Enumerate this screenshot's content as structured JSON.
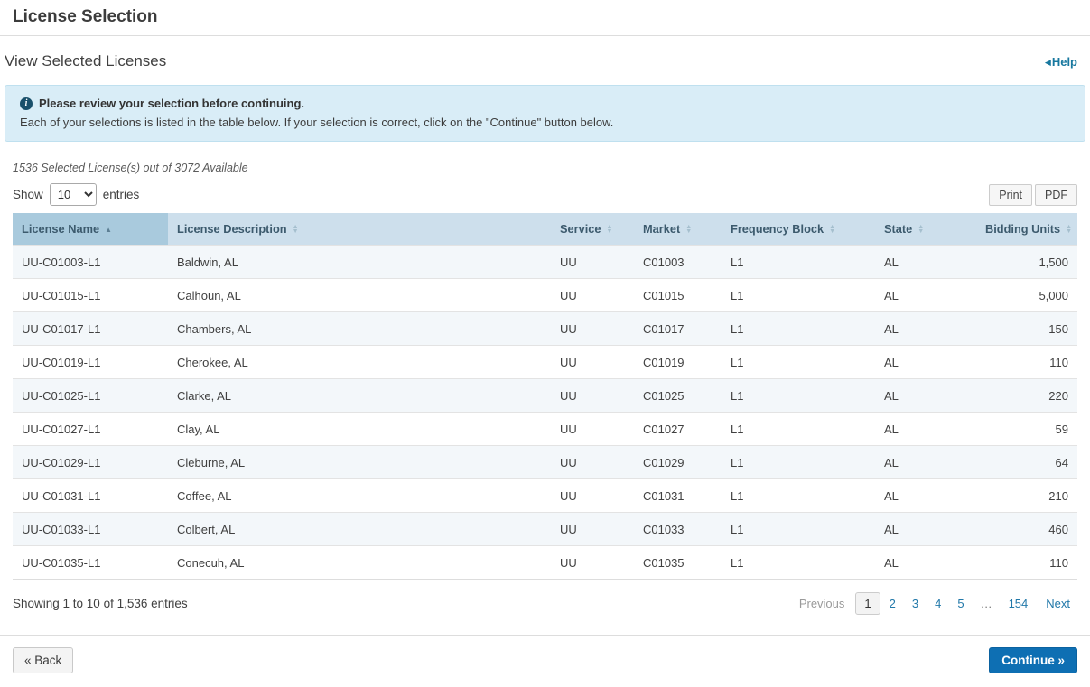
{
  "page": {
    "title": "License Selection",
    "section_title": "View Selected Licenses",
    "help_label": "Help"
  },
  "alert": {
    "title": "Please review your selection before continuing.",
    "body": "Each of your selections is listed in the table below. If your selection is correct, click on the \"Continue\" button below."
  },
  "summary": "1536 Selected License(s) out of 3072 Available",
  "table_controls": {
    "show_label": "Show",
    "page_size": "10",
    "entries_label": "entries",
    "print_label": "Print",
    "pdf_label": "PDF"
  },
  "table": {
    "columns": [
      {
        "key": "license-name",
        "label": "License Name",
        "sort": "asc",
        "align": "left"
      },
      {
        "key": "license-description",
        "label": "License Description",
        "sort": "none",
        "align": "left"
      },
      {
        "key": "service",
        "label": "Service",
        "sort": "none",
        "align": "left"
      },
      {
        "key": "market",
        "label": "Market",
        "sort": "none",
        "align": "left"
      },
      {
        "key": "frequency-block",
        "label": "Frequency Block",
        "sort": "none",
        "align": "left"
      },
      {
        "key": "state",
        "label": "State",
        "sort": "none",
        "align": "left"
      },
      {
        "key": "bidding-units",
        "label": "Bidding Units",
        "sort": "none",
        "align": "right"
      }
    ],
    "rows": [
      [
        "UU-C01003-L1",
        "Baldwin, AL",
        "UU",
        "C01003",
        "L1",
        "AL",
        "1,500"
      ],
      [
        "UU-C01015-L1",
        "Calhoun, AL",
        "UU",
        "C01015",
        "L1",
        "AL",
        "5,000"
      ],
      [
        "UU-C01017-L1",
        "Chambers, AL",
        "UU",
        "C01017",
        "L1",
        "AL",
        "150"
      ],
      [
        "UU-C01019-L1",
        "Cherokee, AL",
        "UU",
        "C01019",
        "L1",
        "AL",
        "110"
      ],
      [
        "UU-C01025-L1",
        "Clarke, AL",
        "UU",
        "C01025",
        "L1",
        "AL",
        "220"
      ],
      [
        "UU-C01027-L1",
        "Clay, AL",
        "UU",
        "C01027",
        "L1",
        "AL",
        "59"
      ],
      [
        "UU-C01029-L1",
        "Cleburne, AL",
        "UU",
        "C01029",
        "L1",
        "AL",
        "64"
      ],
      [
        "UU-C01031-L1",
        "Coffee, AL",
        "UU",
        "C01031",
        "L1",
        "AL",
        "210"
      ],
      [
        "UU-C01033-L1",
        "Colbert, AL",
        "UU",
        "C01033",
        "L1",
        "AL",
        "460"
      ],
      [
        "UU-C01035-L1",
        "Conecuh, AL",
        "UU",
        "C01035",
        "L1",
        "AL",
        "110"
      ]
    ]
  },
  "pagination": {
    "showing": "Showing 1 to 10 of 1,536 entries",
    "previous_label": "Previous",
    "pages": [
      "1",
      "2",
      "3",
      "4",
      "5"
    ],
    "active_page": "1",
    "ellipsis": "…",
    "last_page": "154",
    "next_label": "Next"
  },
  "footer": {
    "back_label": "« Back",
    "continue_label": "Continue »"
  },
  "colors": {
    "primary_button": "#0e6fb3",
    "link": "#2178a9",
    "help_link": "#18789f",
    "alert_bg": "#d9edf7",
    "alert_border": "#bfe0ef",
    "table_header_bg": "#cddfec",
    "sorted_header_bg": "#a9cadd",
    "row_stripe": "#f3f7fa"
  }
}
